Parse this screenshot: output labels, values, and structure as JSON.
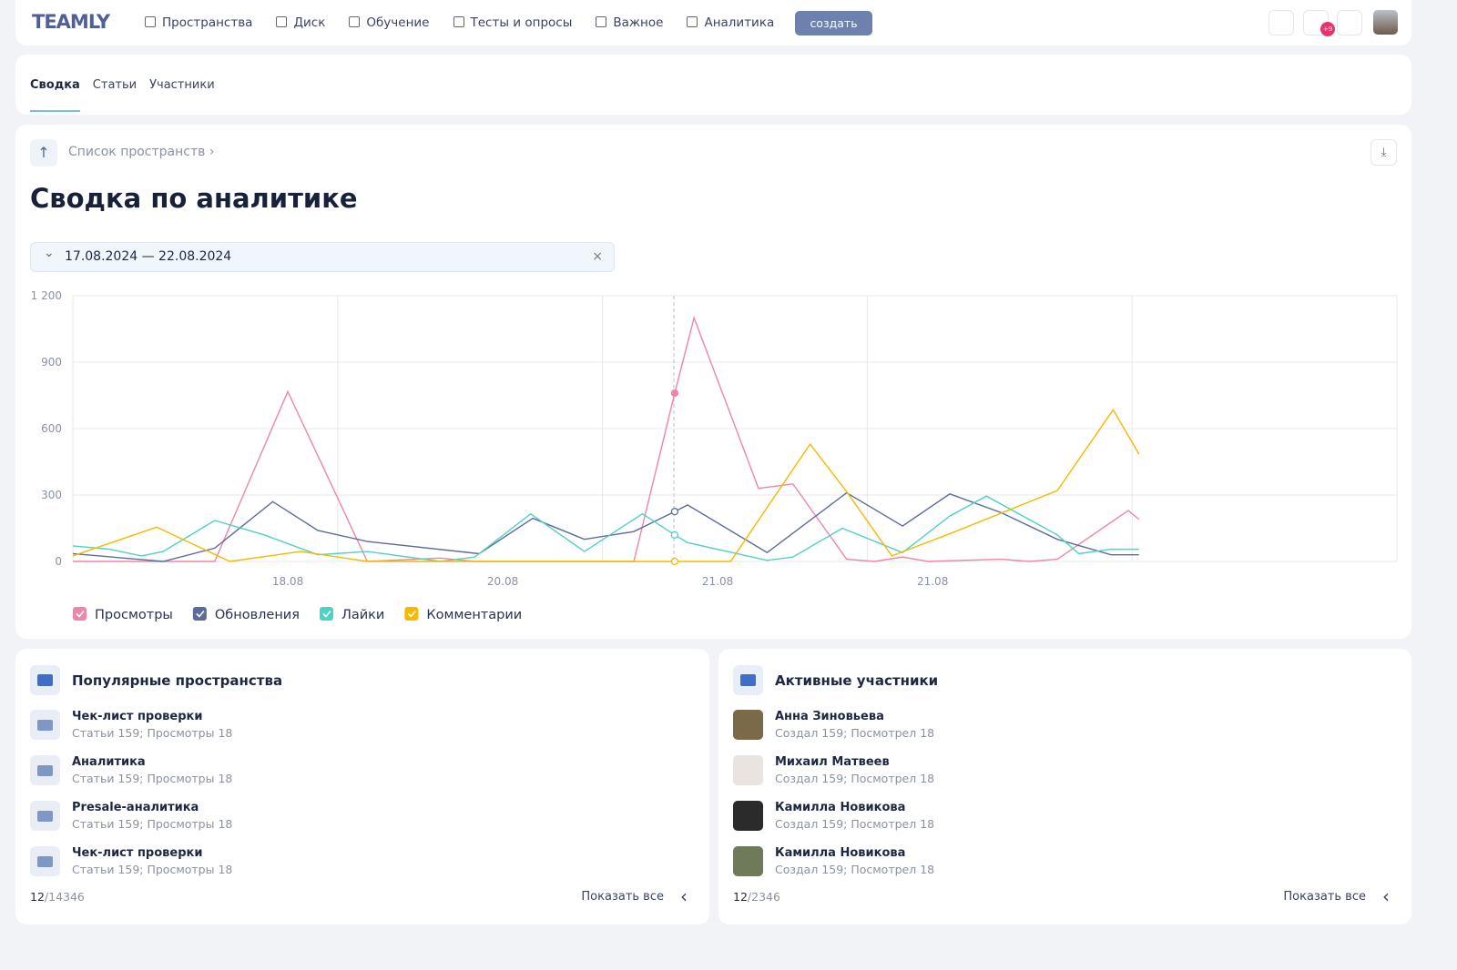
{
  "nav": {
    "logo": "TEAMLY",
    "items": [
      "Пространства",
      "Диск",
      "Обучение",
      "Тесты и опросы",
      "Важное",
      "Аналитика"
    ],
    "create": "создать",
    "badge": "+9"
  },
  "tabs": [
    "Сводка",
    "Статьи",
    "Участники"
  ],
  "breadcrumb": "Список пространств",
  "title": "Сводка по аналитике",
  "date_range": "17.08.2024 — 22.08.2024",
  "chart_data": {
    "type": "line",
    "xlim": [
      0,
      6.16
    ],
    "xticks": [
      {
        "value": 1,
        "label": "18.08"
      },
      {
        "value": 2,
        "label": "20.08"
      },
      {
        "value": 3,
        "label": "21.08"
      },
      {
        "value": 4,
        "label": "21.08"
      }
    ],
    "ylim": [
      0,
      1200
    ],
    "yticks": [
      0,
      300,
      600,
      900,
      {
        "value": 1200,
        "label": "1 200"
      }
    ],
    "grid": true,
    "series": [
      {
        "name": "Просмотры",
        "color": "#ee86a8",
        "x": [
          0,
          0.66,
          1.0,
          1.37,
          1.71,
          1.87,
          2.61,
          2.8,
          2.89,
          3.19,
          3.35,
          3.6,
          3.73,
          3.86,
          3.98,
          4.32,
          4.45,
          4.58,
          4.91,
          4.96
        ],
        "values": [
          0,
          0,
          767,
          0,
          15,
          0,
          0,
          760,
          1100,
          330,
          350,
          10,
          0,
          20,
          0,
          10,
          0,
          10,
          230,
          190
        ]
      },
      {
        "name": "Обновления",
        "color": "#5d6b9c",
        "x": [
          0,
          0.42,
          0.66,
          0.93,
          1.14,
          1.37,
          1.89,
          2.14,
          2.38,
          2.61,
          2.8,
          2.86,
          3.23,
          3.6,
          3.86,
          4.08,
          4.32,
          4.58,
          4.83,
          4.96
        ],
        "values": [
          35,
          0,
          60,
          270,
          140,
          90,
          35,
          195,
          100,
          135,
          225,
          255,
          40,
          310,
          160,
          305,
          220,
          100,
          30,
          30
        ]
      },
      {
        "name": "Лайки",
        "color": "#4fd1c5",
        "x": [
          0,
          0.17,
          0.32,
          0.42,
          0.66,
          0.89,
          1.14,
          1.37,
          1.71,
          1.87,
          2.13,
          2.38,
          2.65,
          2.8,
          2.86,
          3.23,
          3.35,
          3.58,
          3.86,
          4.08,
          4.25,
          4.58,
          4.68,
          4.83,
          4.96
        ],
        "values": [
          70,
          55,
          25,
          45,
          185,
          120,
          30,
          45,
          0,
          20,
          215,
          45,
          215,
          120,
          85,
          5,
          20,
          150,
          40,
          205,
          295,
          120,
          35,
          55,
          55
        ]
      },
      {
        "name": "Комментарии",
        "color": "#f6b900",
        "x": [
          0,
          0.39,
          0.73,
          1.06,
          1.37,
          2.8,
          3.06,
          3.43,
          3.6,
          3.81,
          4.08,
          4.58,
          4.84,
          4.96
        ],
        "values": [
          25,
          155,
          0,
          45,
          0,
          0,
          0,
          530,
          315,
          25,
          125,
          320,
          685,
          485
        ]
      }
    ]
  },
  "panels": [
    {
      "title": "Популярные пространства",
      "count": "12",
      "total": "/14346",
      "show_all": "Показать все",
      "items": [
        {
          "name": "Чек-лист проверки",
          "meta": "Статьи 159; Просмотры 18"
        },
        {
          "name": "Аналитика",
          "meta": "Статьи 159; Просмотры 18"
        },
        {
          "name": "Presale-аналитика",
          "meta": "Статьи 159; Просмотры 18"
        },
        {
          "name": "Чек-лист проверки",
          "meta": "Статьи 159; Просмотры 18"
        }
      ]
    },
    {
      "title": "Активные участники",
      "count": "12",
      "total": "/2346",
      "show_all": "Показать все",
      "items": [
        {
          "name": "Анна Зиновьева",
          "meta": "Создал 159; Посмотрел 18"
        },
        {
          "name": "Михаил Матвеев",
          "meta": "Создал 159; Посмотрел 18"
        },
        {
          "name": "Камилла Новикова",
          "meta": "Создал 159; Посмотрел 18"
        },
        {
          "name": "Камилла Новикова",
          "meta": "Создал 159; Посмотрел 18"
        }
      ]
    }
  ]
}
